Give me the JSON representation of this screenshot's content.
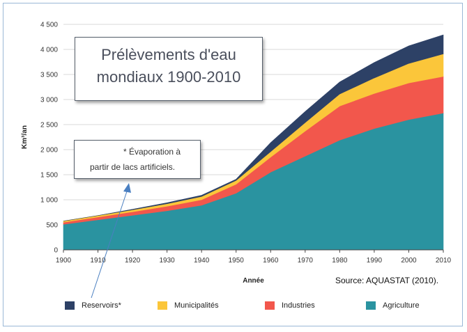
{
  "chart_data": {
    "type": "area",
    "stacked": true,
    "title": "Prélèvements d'eau mondiaux 1900-2010",
    "xlabel": "Année",
    "ylabel": "Km³/an",
    "x": [
      1900,
      1910,
      1920,
      1930,
      1940,
      1950,
      1960,
      1970,
      1980,
      1990,
      2000,
      2010
    ],
    "xlim": [
      1900,
      2010
    ],
    "ylim": [
      0,
      4500
    ],
    "yticks": [
      0,
      500,
      1000,
      1500,
      2000,
      2500,
      3000,
      3500,
      4000,
      4500
    ],
    "ytick_labels": [
      "0",
      "500",
      "1 000",
      "1 500",
      "2 000",
      "2 500",
      "3 000",
      "3 500",
      "4 000",
      "4 500"
    ],
    "xticks": [
      1900,
      1910,
      1920,
      1930,
      1940,
      1950,
      1960,
      1970,
      1980,
      1990,
      2000,
      2010
    ],
    "xtick_labels": [
      "1900",
      "1910",
      "1920",
      "1930",
      "1940",
      "1950",
      "1960",
      "1970",
      "1980",
      "1990",
      "2000",
      "2010"
    ],
    "grid": true,
    "legend_position": "bottom",
    "series": [
      {
        "name": "Agriculture",
        "color": "#2a93a0",
        "values": [
          510,
          600,
          690,
          780,
          890,
          1130,
          1550,
          1870,
          2190,
          2420,
          2600,
          2730
        ]
      },
      {
        "name": "Industries",
        "color": "#f2574c",
        "values": [
          40,
          55,
          70,
          90,
          110,
          180,
          300,
          500,
          680,
          700,
          730,
          730
        ]
      },
      {
        "name": "Municipalités",
        "color": "#fbc63a",
        "values": [
          25,
          30,
          40,
          50,
          65,
          75,
          110,
          170,
          240,
          310,
          390,
          450
        ]
      },
      {
        "name": "Reservoirs*",
        "color": "#2d4166",
        "values": [
          0,
          0,
          10,
          20,
          25,
          25,
          180,
          220,
          240,
          310,
          350,
          380
        ]
      }
    ],
    "legend_order": [
      "Reservoirs*",
      "Municipalités",
      "Industries",
      "Agriculture"
    ],
    "annotations": {
      "title_lines": [
        "Prélèvements d'eau",
        "mondiaux 1900-2010"
      ],
      "note_lines": [
        "* Évaporation à",
        "partir de lacs artificiels."
      ],
      "source": "Source: AQUASTAT (2010)."
    },
    "colors": {
      "grid": "#d9d9d9",
      "axis": "#444444",
      "arrow": "#4a7fc1",
      "frame": "#9ab8d6"
    }
  }
}
